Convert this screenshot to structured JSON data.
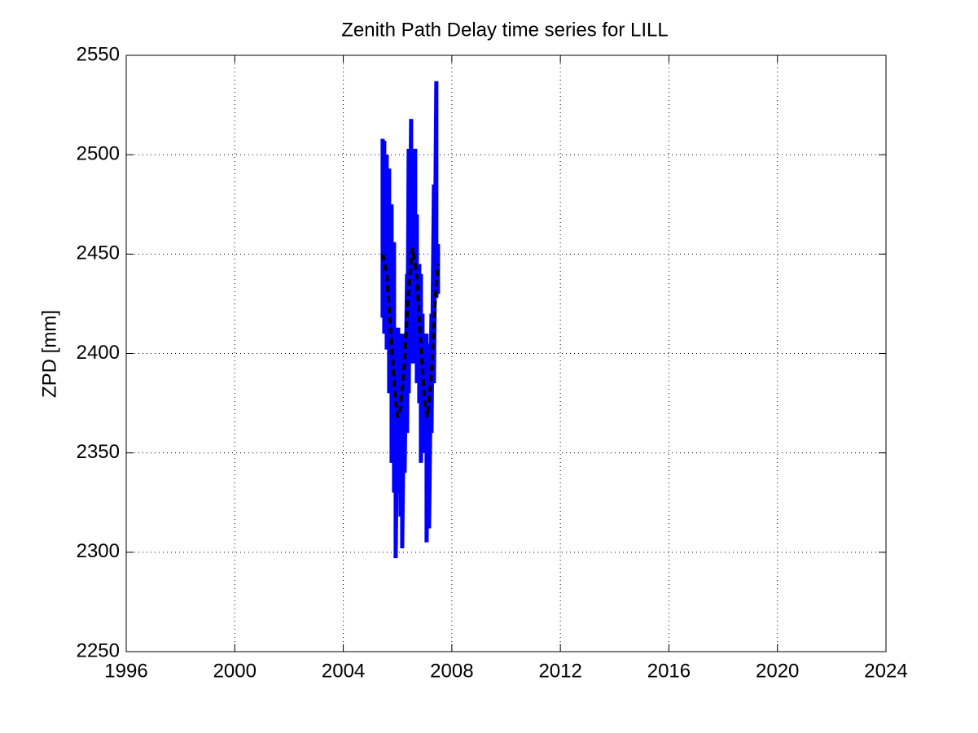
{
  "chart_data": {
    "type": "line",
    "title": "Zenith Path Delay time series for LILL",
    "y_label": "ZPD [mm]",
    "xlim": [
      1996,
      2024
    ],
    "xticks": [
      1996,
      2000,
      2004,
      2008,
      2012,
      2016,
      2020,
      2024
    ],
    "ylim": [
      2250,
      2550
    ],
    "yticks": [
      2250,
      2300,
      2350,
      2400,
      2450,
      2500,
      2550
    ],
    "grid": true,
    "series": [
      {
        "color": "#0000ff",
        "line_style": "solid",
        "x": [
          2005.45,
          2005.45,
          2005.51,
          2005.51,
          2005.6,
          2005.6,
          2005.69,
          2005.69,
          2005.78,
          2005.78,
          2005.87,
          2005.87,
          2005.93,
          2005.93,
          2006.02,
          2006.02,
          2006.11,
          2006.11,
          2006.17,
          2006.17,
          2006.26,
          2006.26,
          2006.35,
          2006.35,
          2006.41,
          2006.41,
          2006.5,
          2006.5,
          2006.56,
          2006.56,
          2006.65,
          2006.65,
          2006.71,
          2006.71,
          2006.8,
          2006.8,
          2006.86,
          2006.86,
          2006.92,
          2006.92,
          2007.01,
          2007.01,
          2007.07,
          2007.07,
          2007.16,
          2007.16,
          2007.25,
          2007.25,
          2007.34,
          2007.34,
          2007.43,
          2007.43,
          2007.49,
          2007.49
        ],
        "values": [
          2508,
          2418,
          2507,
          2410,
          2500,
          2402,
          2493,
          2380,
          2475,
          2345,
          2456,
          2330,
          2410,
          2297,
          2413,
          2330,
          2410,
          2318,
          2390,
          2302,
          2410,
          2340,
          2440,
          2360,
          2503,
          2380,
          2518,
          2405,
          2498,
          2395,
          2503,
          2405,
          2470,
          2385,
          2445,
          2375,
          2440,
          2345,
          2420,
          2360,
          2405,
          2350,
          2410,
          2305,
          2405,
          2312,
          2420,
          2360,
          2485,
          2385,
          2537,
          2428,
          2455,
          2430
        ]
      },
      {
        "color": "#000000",
        "line_style": "dashed",
        "x": [
          2005.45,
          2005.6,
          2005.75,
          2005.9,
          2006.0,
          2006.1,
          2006.25,
          2006.4,
          2006.55,
          2006.7,
          2006.85,
          2007.0,
          2007.1,
          2007.25,
          2007.4,
          2007.5
        ],
        "values": [
          2450,
          2440,
          2410,
          2380,
          2368,
          2372,
          2395,
          2430,
          2453,
          2440,
          2405,
          2375,
          2368,
          2390,
          2430,
          2445
        ]
      }
    ]
  }
}
